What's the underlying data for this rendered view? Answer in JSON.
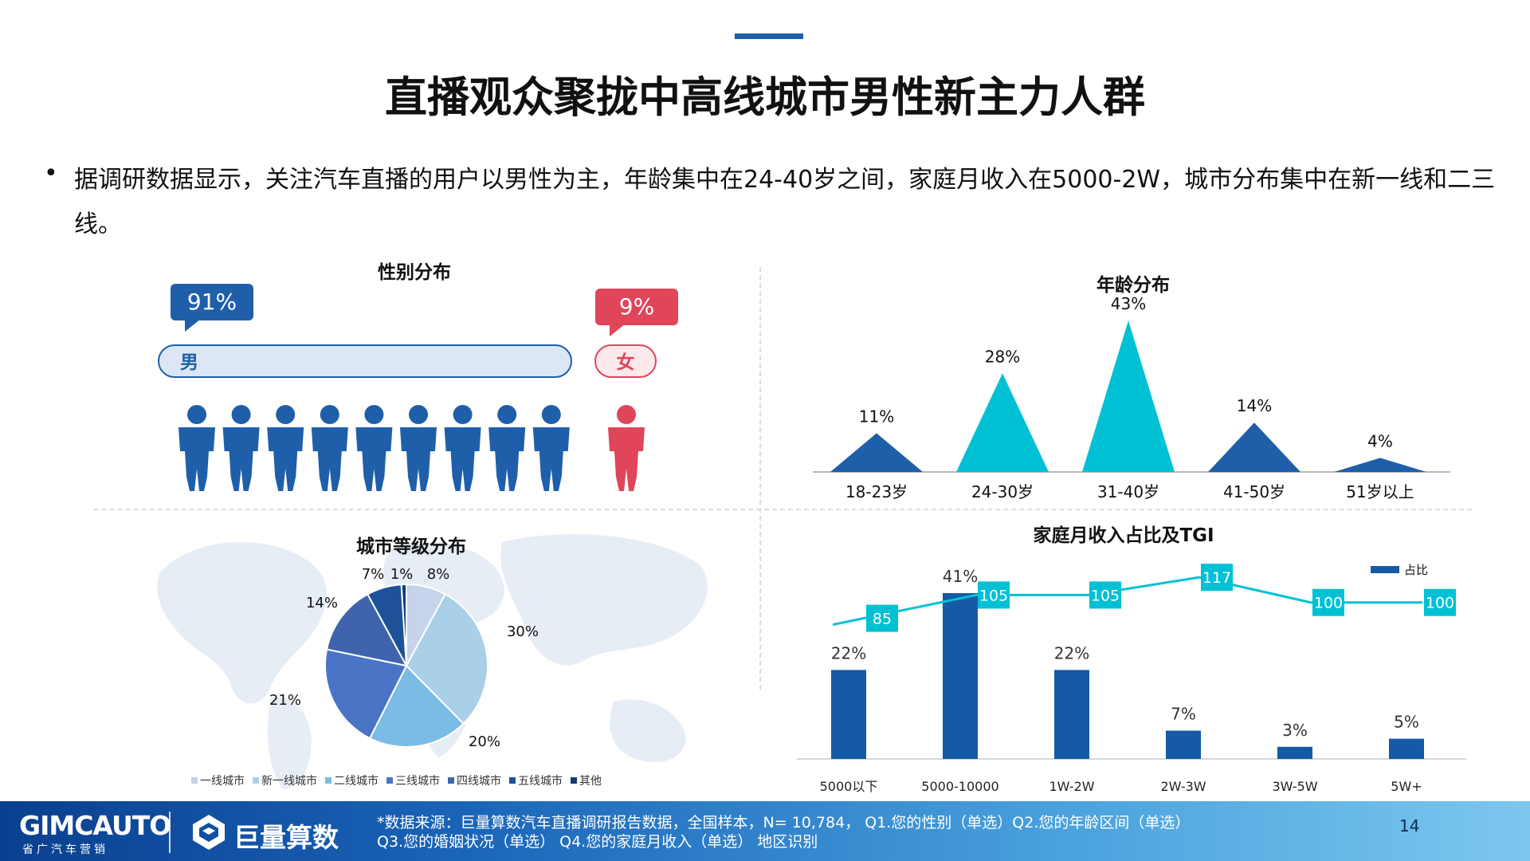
{
  "title": "直播观众聚拢中高线城市男性新主力人群",
  "description": "据调研数据显示，关注汽车直播的用户以男性为主，年龄集中在24-40岁之间，家庭月收入在5000-2W，城市分布集中在新一线和二三线。",
  "colors": {
    "male": "#1f5fa9",
    "female": "#e0455a",
    "age_dark": "#1f5fa9",
    "age_teal": "#00c1d4",
    "tgi": "#00c1d4",
    "income_bar": "#1659a6"
  },
  "gender": {
    "title": "性别分布",
    "male_pct": "91%",
    "male_label": "男",
    "male_value": 91,
    "female_pct": "9%",
    "female_label": "女",
    "female_value": 9,
    "male_icon": "person-icon",
    "female_icon": "person-icon"
  },
  "footer": {
    "brand1": "GIMCAUTO",
    "brand1_sub": "省广汽车营销",
    "brand2": "巨量算数",
    "brand2_icon": "logo-icon",
    "source_line1": "*数据来源：巨量算数汽车直播调研报告数据，全国样本，N= 10,784， Q1.您的性别（单选）Q2.您的年龄区间（单选）",
    "source_line2": "Q3.您的婚姻状况（单选） Q4.您的家庭月收入（单选） 地区识别",
    "page": "14"
  },
  "chart_data": [
    {
      "type": "area",
      "title": "年龄分布",
      "categories": [
        "18-23岁",
        "24-30岁",
        "31-40岁",
        "41-50岁",
        "51岁以上"
      ],
      "values": [
        11,
        28,
        43,
        14,
        4
      ],
      "labels": [
        "11%",
        "28%",
        "43%",
        "14%",
        "4%"
      ],
      "ylim": [
        0,
        43
      ]
    },
    {
      "type": "pie",
      "title": "城市等级分布",
      "categories": [
        "一线城市",
        "新一线城市",
        "二线城市",
        "三线城市",
        "四线城市",
        "五线城市",
        "其他"
      ],
      "values": [
        8,
        30,
        20,
        21,
        14,
        7,
        1
      ],
      "labels": [
        "8%",
        "30%",
        "20%",
        "21%",
        "14%",
        "7%",
        "1%"
      ],
      "colors": [
        "#c5d3eb",
        "#a9cfe9",
        "#7bbce6",
        "#4a74c6",
        "#3f64ad",
        "#1d5298",
        "#153b70"
      ],
      "legend": "bottom"
    },
    {
      "type": "bar",
      "title": "家庭月收入占比及TGI",
      "categories": [
        "5000以下",
        "5000-10000",
        "1W-2W",
        "2W-3W",
        "3W-5W",
        "5W+"
      ],
      "series": [
        {
          "name": "占比",
          "values": [
            22,
            41,
            22,
            7,
            3,
            5
          ],
          "labels": [
            "22%",
            "41%",
            "22%",
            "7%",
            "3%",
            "5%"
          ]
        },
        {
          "values": [
            85,
            105,
            105,
            117,
            100,
            100
          ],
          "labels": [
            "85",
            "105",
            "105",
            "117",
            "100",
            "100"
          ]
        }
      ],
      "legend": "top-right"
    }
  ]
}
